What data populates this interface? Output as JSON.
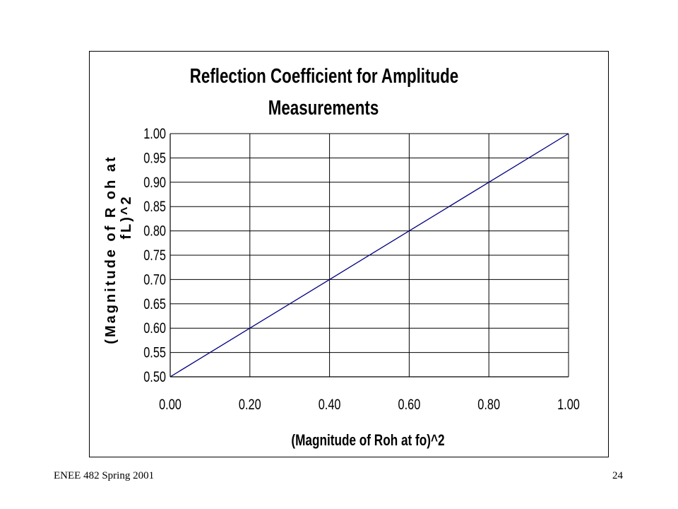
{
  "slide": {
    "footer_left": "ENEE 482 Spring 2001",
    "page_number": "24"
  },
  "chart_data": {
    "type": "line",
    "title_lines": [
      "Reflection Coefficient for Amplitude",
      "Measurements"
    ],
    "xlabel": "(Magnitude of Roh at fo)^2",
    "ylabel_lines": [
      "(Magnitude of R oh at",
      "fL)^2"
    ],
    "xlim": [
      0.0,
      1.0
    ],
    "ylim": [
      0.5,
      1.0
    ],
    "x_ticks": [
      "0.00",
      "0.20",
      "0.40",
      "0.60",
      "0.80",
      "1.00"
    ],
    "y_ticks": [
      "0.50",
      "0.55",
      "0.60",
      "0.65",
      "0.70",
      "0.75",
      "0.80",
      "0.85",
      "0.90",
      "0.95",
      "1.00"
    ],
    "grid": true,
    "legend": "none",
    "series": [
      {
        "color": "#000080",
        "x": [
          0.0,
          0.2,
          0.4,
          0.6,
          0.8,
          1.0
        ],
        "y": [
          0.5,
          0.6,
          0.7,
          0.8,
          0.9,
          1.0
        ]
      }
    ]
  }
}
